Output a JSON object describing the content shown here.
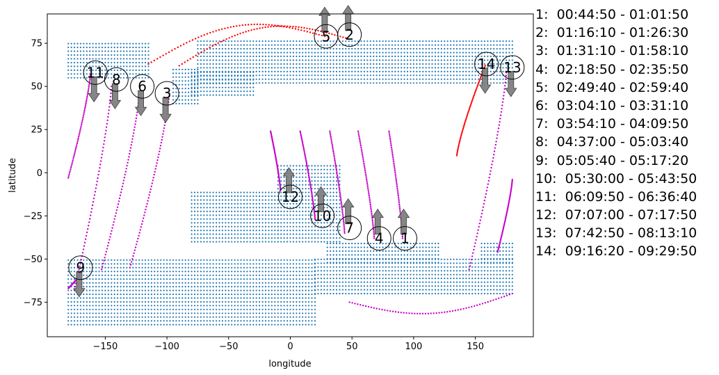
{
  "chart_data": {
    "type": "scatter",
    "title": "",
    "xlabel": "longitude",
    "ylabel": "latitude",
    "xlim": [
      -197,
      197
    ],
    "ylim": [
      -95,
      92
    ],
    "xticks": [
      -150,
      -100,
      -50,
      0,
      50,
      100,
      150
    ],
    "yticks": [
      -75,
      -50,
      -25,
      0,
      25,
      50,
      75
    ],
    "grid": false,
    "colors": {
      "ground": "#1f77b4",
      "ascending": "#ff0000",
      "descending": "#c800c8",
      "arrow": "#808080"
    },
    "ground_regions": [
      {
        "lon": [
          -180,
          -115
        ],
        "lat": [
          55,
          76
        ]
      },
      {
        "lon": [
          -95,
          -75
        ],
        "lat": [
          40,
          60
        ]
      },
      {
        "lon": [
          -75,
          180
        ],
        "lat": [
          52,
          78
        ]
      },
      {
        "lon": [
          -80,
          -30
        ],
        "lat": [
          45,
          60
        ]
      },
      {
        "lon": [
          -10,
          40
        ],
        "lat": [
          -40,
          5
        ]
      },
      {
        "lon": [
          30,
          120
        ],
        "lat": [
          -52,
          -40
        ]
      },
      {
        "lon": [
          -80,
          -10
        ],
        "lat": [
          -40,
          -10
        ]
      },
      {
        "lon": [
          -180,
          20
        ],
        "lat": [
          -88,
          -50
        ]
      },
      {
        "lon": [
          20,
          180
        ],
        "lat": [
          -70,
          -50
        ]
      },
      {
        "lon": [
          155,
          180
        ],
        "lat": [
          -52,
          -40
        ]
      }
    ],
    "passes": [
      {
        "id": "1",
        "label": "1:  00:44:50 - 01:01:50",
        "dir": "descending",
        "lon": [
          91,
          80
        ],
        "lat": [
          -38,
          24
        ],
        "circle": [
          93,
          -38
        ],
        "arrow": "up"
      },
      {
        "id": "2",
        "label": "2:  01:16:10 - 01:26:30",
        "dir": "ascending",
        "lon": [
          -90,
          45
        ],
        "lat": [
          62,
          78
        ],
        "circle": [
          48,
          80
        ],
        "arrow": "up"
      },
      {
        "id": "3",
        "label": "3:  01:31:10 - 01:58:10",
        "dir": "descending",
        "lon": [
          -98,
          -130
        ],
        "lat": [
          46,
          -55
        ],
        "circle": [
          -100,
          46
        ],
        "arrow": "down"
      },
      {
        "id": "4",
        "label": "4:  02:18:50 - 02:35:50",
        "dir": "descending",
        "lon": [
          68,
          55
        ],
        "lat": [
          -38,
          24
        ],
        "circle": [
          72,
          -38
        ],
        "arrow": "up"
      },
      {
        "id": "5",
        "label": "5:  02:49:40 - 02:59:40",
        "dir": "ascending",
        "lon": [
          -115,
          28
        ],
        "lat": [
          63,
          79
        ],
        "circle": [
          29,
          79
        ],
        "arrow": "up"
      },
      {
        "id": "6",
        "label": "6:  03:04:10 - 03:31:10",
        "dir": "descending",
        "lon": [
          -122,
          -153
        ],
        "lat": [
          47,
          -56
        ],
        "circle": [
          -120,
          50
        ],
        "arrow": "down"
      },
      {
        "id": "7",
        "label": "7:  03:54:10 - 04:09:50",
        "dir": "descending",
        "lon": [
          44,
          32
        ],
        "lat": [
          -35,
          24
        ],
        "circle": [
          48,
          -32
        ],
        "arrow": "up"
      },
      {
        "id": "8",
        "label": "8:  04:37:00 - 05:03:40",
        "dir": "descending",
        "lon": [
          -145,
          -175
        ],
        "lat": [
          50,
          -68
        ],
        "circle": [
          -141,
          54
        ],
        "arrow": "down"
      },
      {
        "id": "9",
        "label": "9:  05:05:40 - 05:17:20",
        "dir": "descending",
        "lon": [
          -170,
          -180
        ],
        "lat": [
          -58,
          -67
        ],
        "circle": [
          -170,
          -55
        ],
        "arrow": "down"
      },
      {
        "id": "10",
        "label": "10:  05:30:00 - 05:43:50",
        "dir": "descending",
        "lon": [
          20,
          8
        ],
        "lat": [
          -27,
          24
        ],
        "circle": [
          26,
          -25
        ],
        "arrow": "up"
      },
      {
        "id": "11",
        "label": "11:  06:09:50 - 06:36:40",
        "dir": "descending",
        "lon": [
          -162,
          -180
        ],
        "lat": [
          57,
          -3
        ],
        "circle": [
          -158,
          58
        ],
        "arrow": "down"
      },
      {
        "id": "12",
        "label": "12:  07:07:00 - 07:17:50",
        "dir": "descending",
        "lon": [
          -8,
          -16
        ],
        "lat": [
          -10,
          24
        ],
        "circle": [
          0,
          -14
        ],
        "arrow": "up"
      },
      {
        "id": "13",
        "label": "13:  07:42:50 - 08:13:10",
        "dir": "descending",
        "lon": [
          175,
          145
        ],
        "lat": [
          58,
          -56
        ],
        "circle": [
          180,
          61
        ],
        "arrow": "down"
      },
      {
        "id": "14",
        "label": "14:  09:16:20 - 09:29:50",
        "dir": "ascending",
        "lon": [
          135,
          158
        ],
        "lat": [
          10,
          62
        ],
        "circle": [
          159,
          63
        ],
        "arrow": "down"
      }
    ],
    "extra_tracks": [
      {
        "dir": "descending",
        "lon": [
          180,
          168
        ],
        "lat": [
          -4,
          -46
        ]
      },
      {
        "dir": "descending",
        "lon": [
          48,
          180
        ],
        "lat": [
          -75,
          -70
        ],
        "arc": true
      }
    ]
  }
}
